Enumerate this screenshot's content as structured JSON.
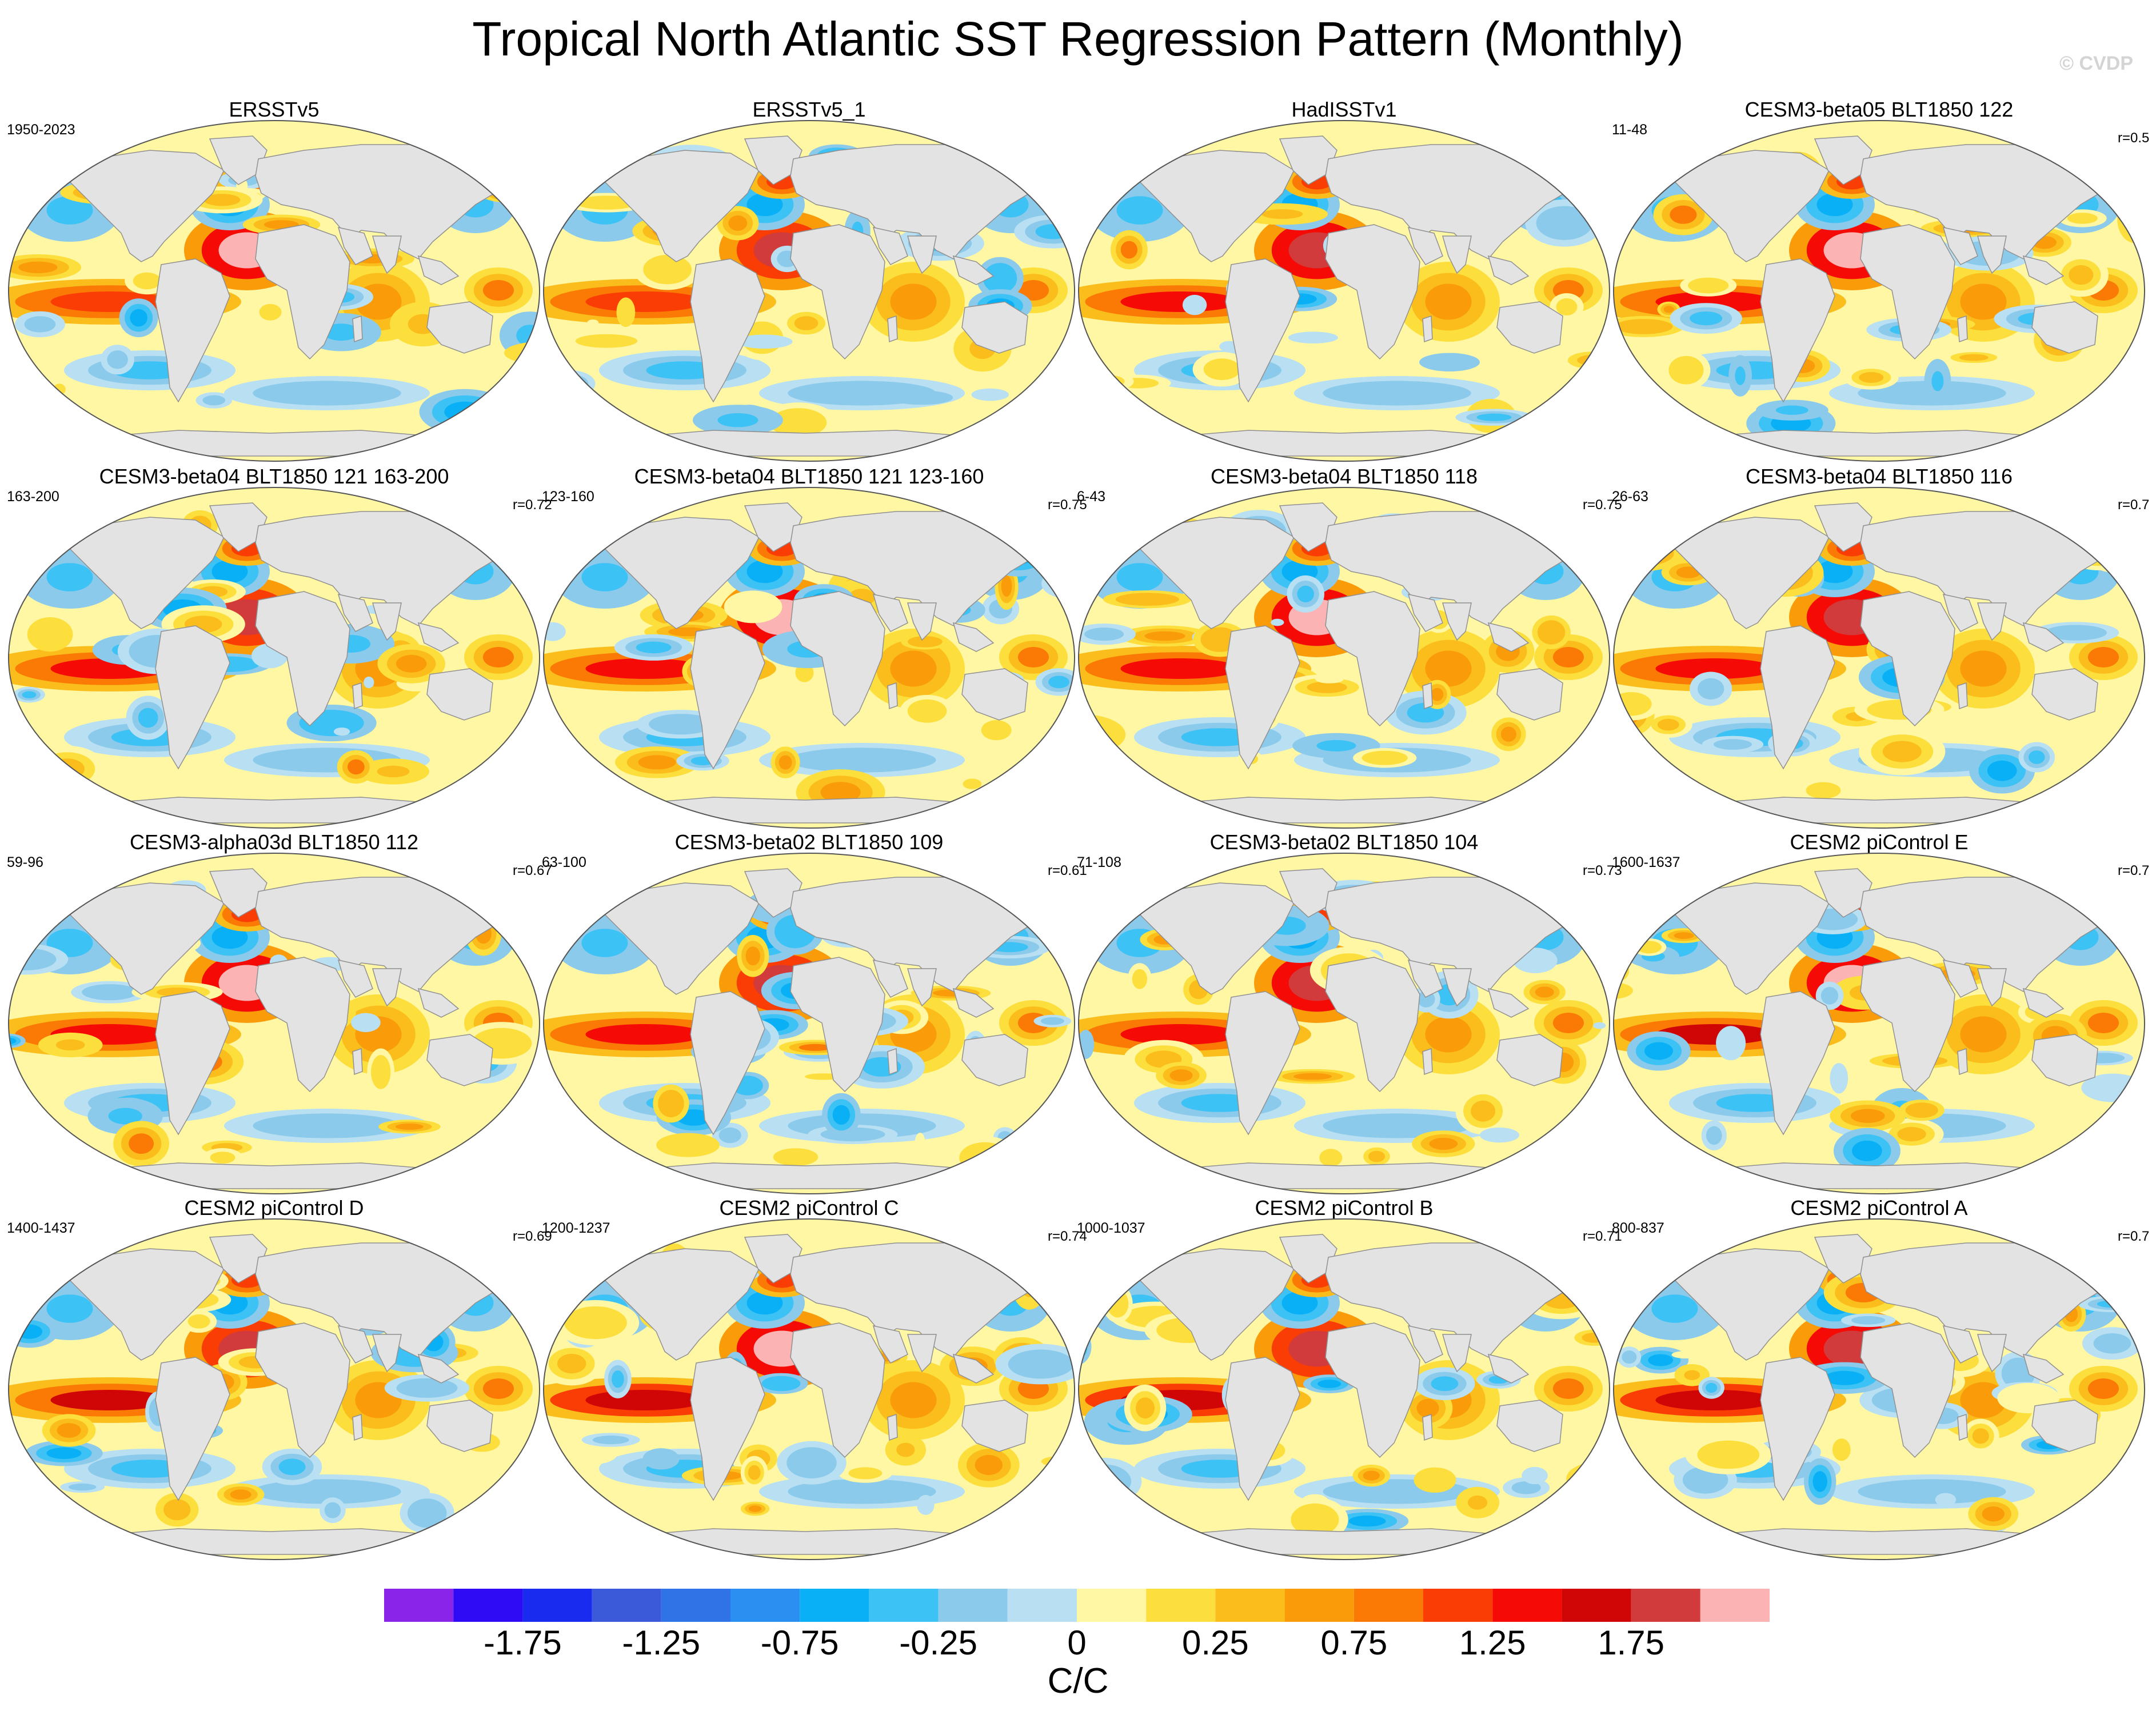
{
  "title": "Tropical North Atlantic SST Regression Pattern (Monthly)",
  "watermark": "© CVDP",
  "chart_data": {
    "type": "heatmap",
    "description_type": "map panels of SST regression (C/C)",
    "panels": [
      {
        "title": "ERSSTv5",
        "years": "1950-2023",
        "corr": ""
      },
      {
        "title": "ERSSTv5_1",
        "years": "",
        "corr": ""
      },
      {
        "title": "HadISSTv1",
        "years": "",
        "corr": ""
      },
      {
        "title": "CESM3-beta05 BLT1850 122",
        "years": "11-48",
        "corr": "r=0.5"
      },
      {
        "title": "CESM3-beta04 BLT1850 121 163-200",
        "years": "163-200",
        "corr": "r=0.72"
      },
      {
        "title": "CESM3-beta04 BLT1850 121 123-160",
        "years": "123-160",
        "corr": "r=0.75"
      },
      {
        "title": "CESM3-beta04 BLT1850 118",
        "years": "6-43",
        "corr": "r=0.75"
      },
      {
        "title": "CESM3-beta04 BLT1850 116",
        "years": "26-63",
        "corr": "r=0.7"
      },
      {
        "title": "CESM3-alpha03d BLT1850 112",
        "years": "59-96",
        "corr": "r=0.67"
      },
      {
        "title": "CESM3-beta02 BLT1850 109",
        "years": "63-100",
        "corr": "r=0.61"
      },
      {
        "title": "CESM3-beta02 BLT1850 104",
        "years": "71-108",
        "corr": "r=0.73"
      },
      {
        "title": "CESM2 piControl E",
        "years": "1600-1637",
        "corr": "r=0.7"
      },
      {
        "title": "CESM2 piControl D",
        "years": "1400-1437",
        "corr": "r=0.69"
      },
      {
        "title": "CESM2 piControl C",
        "years": "1200-1237",
        "corr": "r=0.74"
      },
      {
        "title": "CESM2 piControl B",
        "years": "1000-1037",
        "corr": "r=0.71"
      },
      {
        "title": "CESM2 piControl A",
        "years": "800-837",
        "corr": "r=0.7"
      }
    ],
    "colorbar": {
      "colors": [
        "#8a24e8",
        "#2e0af5",
        "#1a2bf0",
        "#3b5ad9",
        "#2f73e6",
        "#2a8ff0",
        "#0ab0f5",
        "#3cc2f5",
        "#8ccaeb",
        "#b8e0f2",
        "#fff7a3",
        "#fcdf3c",
        "#fbbd1c",
        "#fa9b0a",
        "#fa7a05",
        "#fa3c05",
        "#f50a05",
        "#d00505",
        "#d13b3b",
        "#fbb3b3"
      ],
      "tick_labels": [
        "-1.75",
        "-1.25",
        "-0.75",
        "-0.25",
        "0",
        "0.25",
        "0.75",
        "1.25",
        "1.75"
      ],
      "units": "C/C"
    },
    "color_scale_range": [
      -2,
      2
    ]
  }
}
